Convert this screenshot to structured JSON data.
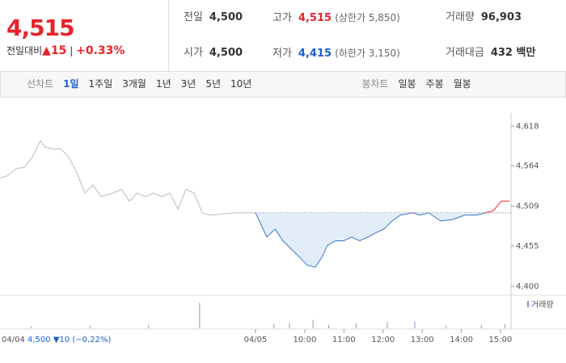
{
  "header": {
    "price": "4,515",
    "change_label": "전일대비",
    "change": "▲15",
    "change_rate": "+0.33%",
    "stats": [
      {
        "label": "전일",
        "value": "4,500"
      },
      {
        "label": "고가",
        "value": "4,515",
        "note": "(상한가 5,850)"
      },
      {
        "label": "거래량",
        "value": "96,903"
      },
      {
        "label": "시가",
        "value": "4,500"
      },
      {
        "label": "저가",
        "value": "4,415",
        "note": "(하한가 3,150)"
      },
      {
        "label": "거래대금",
        "value": "432 백만"
      }
    ]
  },
  "tabs": {
    "line_label": "선차트",
    "line": [
      "1일",
      "1주일",
      "3개월",
      "1년",
      "3년",
      "5년",
      "10년"
    ],
    "candle_label": "봉차트",
    "candle": [
      "일봉",
      "주봉",
      "월봉"
    ]
  },
  "footer": {
    "date": "04/04",
    "info": "4,500 ▼10 (−0,22%)"
  },
  "chart_data": {
    "type": "line",
    "volume_label": "거래량",
    "xlim": [
      2.21,
      15.27
    ],
    "ylim": [
      4389,
      4636
    ],
    "reference_line": 4500,
    "yticks": [
      {
        "value": 4618,
        "label": "4,618"
      },
      {
        "value": 4564,
        "label": "4,564"
      },
      {
        "value": 4509,
        "label": "4,509"
      },
      {
        "value": 4455,
        "label": "4,455"
      },
      {
        "value": 4400,
        "label": "4,400"
      }
    ],
    "xticks": [
      {
        "value": 8.74,
        "label": "04/05"
      },
      {
        "value": 10,
        "label": "10:00"
      },
      {
        "value": 11,
        "label": "11:00"
      },
      {
        "value": 12,
        "label": "12:00"
      },
      {
        "value": 13,
        "label": "13:00"
      },
      {
        "value": 14,
        "label": "14:00"
      },
      {
        "value": 15,
        "label": "15:00"
      }
    ],
    "series": [
      {
        "name": "04/04",
        "color": "#bbbbbb",
        "x": [
          2.21,
          2.42,
          2.62,
          2.83,
          3.04,
          3.24,
          3.35,
          3.55,
          3.76,
          3.97,
          4.17,
          4.38,
          4.59,
          4.79,
          5.1,
          5.31,
          5.52,
          5.72,
          5.93,
          6.14,
          6.34,
          6.55,
          6.76,
          6.96,
          7.17,
          7.38,
          7.58,
          8.2,
          8.74
        ],
        "values": [
          4547,
          4551,
          4560,
          4562,
          4576,
          4598,
          4590,
          4587,
          4587,
          4576,
          4555,
          4527,
          4538,
          4522,
          4527,
          4532,
          4516,
          4527,
          4522,
          4527,
          4522,
          4527,
          4505,
          4532,
          4527,
          4500,
          4497,
          4500,
          4500
        ]
      },
      {
        "name": "04/05",
        "color": "#3a77c9",
        "up_color": "#e8232b",
        "x": [
          8.74,
          9.03,
          9.24,
          9.44,
          9.65,
          9.86,
          10.06,
          10.27,
          10.44,
          10.58,
          10.79,
          10.99,
          11.2,
          11.4,
          11.61,
          11.82,
          12.02,
          12.23,
          12.44,
          12.75,
          12.95,
          13.16,
          13.47,
          13.78,
          14.09,
          14.4,
          14.61,
          14.82,
          15.02,
          15.23
        ],
        "values": [
          4500,
          4467,
          4478,
          4462,
          4451,
          4440,
          4429,
          4426,
          4440,
          4456,
          4462,
          4462,
          4467,
          4462,
          4467,
          4473,
          4478,
          4489,
          4497,
          4500,
          4497,
          4500,
          4489,
          4491,
          4497,
          4497,
          4500,
          4503,
          4516,
          4516
        ]
      }
    ],
    "volume": {
      "ylim": [
        0,
        40
      ],
      "color": "#9a8fd0",
      "x": [
        3.0,
        4.5,
        6.0,
        7.3,
        9.2,
        9.6,
        10.2,
        10.6,
        11.3,
        12.1,
        12.8,
        13.6,
        14.5,
        15.1
      ],
      "values": [
        3,
        4,
        5,
        36,
        6,
        8,
        12,
        5,
        7,
        9,
        10,
        4,
        5,
        6
      ]
    }
  }
}
